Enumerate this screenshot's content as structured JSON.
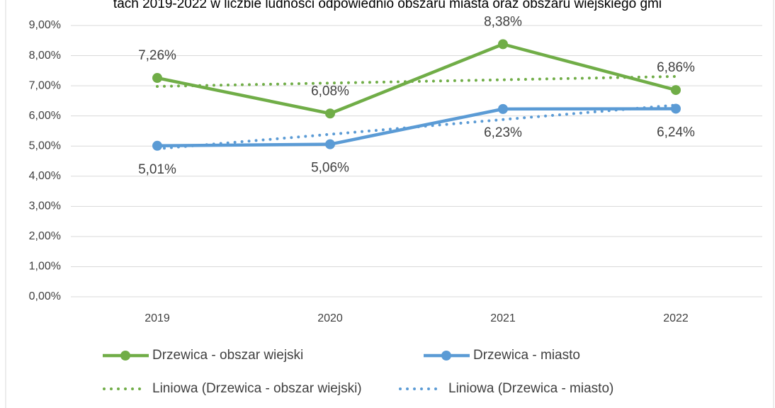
{
  "chart_data": {
    "type": "line",
    "title": "tach 2019-2022 w liczbie ludności odpowiednio obszaru miasta oraz obszaru wiejskiego gmi",
    "categories": [
      "2019",
      "2020",
      "2021",
      "2022"
    ],
    "ylim": [
      0,
      9
    ],
    "yticks": [
      {
        "value": 0,
        "label": "0,00%"
      },
      {
        "value": 1,
        "label": "1,00%"
      },
      {
        "value": 2,
        "label": "2,00%"
      },
      {
        "value": 3,
        "label": "3,00%"
      },
      {
        "value": 4,
        "label": "4,00%"
      },
      {
        "value": 5,
        "label": "5,00%"
      },
      {
        "value": 6,
        "label": "6,00%"
      },
      {
        "value": 7,
        "label": "7,00%"
      },
      {
        "value": 8,
        "label": "8,00%"
      },
      {
        "value": 9,
        "label": "9,00%"
      }
    ],
    "grid": true,
    "legend": "bottom",
    "series": [
      {
        "name": "Drzewica - obszar wiejski",
        "color": "#70ad47",
        "values": [
          7.26,
          6.08,
          8.38,
          6.86
        ],
        "value_labels": [
          "7,26%",
          "6,08%",
          "8,38%",
          "6,86%"
        ]
      },
      {
        "name": "Drzewica - miasto",
        "color": "#5b9bd5",
        "values": [
          5.01,
          5.06,
          6.23,
          6.24
        ],
        "value_labels": [
          "5,01%",
          "5,06%",
          "6,23%",
          "6,24%"
        ]
      },
      {
        "name": "Liniowa (Drzewica - obszar wiejski)",
        "color": "#70ad47",
        "dotted": true,
        "values": [
          6.98,
          7.09,
          7.2,
          7.31
        ]
      },
      {
        "name": "Liniowa (Drzewica - miasto)",
        "color": "#5b9bd5",
        "dotted": true,
        "values": [
          4.91,
          5.39,
          5.88,
          6.36
        ]
      }
    ]
  }
}
